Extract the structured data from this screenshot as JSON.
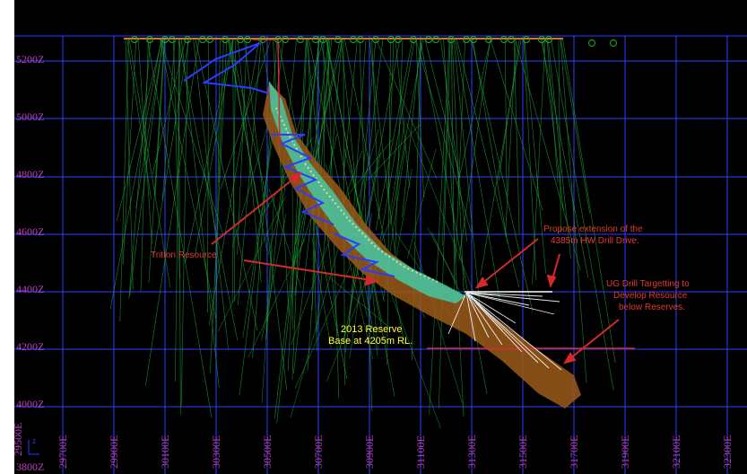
{
  "section": {
    "y_levels": [
      "5200Z",
      "5000Z",
      "4800Z",
      "4600Z",
      "4400Z",
      "4200Z",
      "4000Z",
      "3800Z"
    ],
    "y_partial_label": "3800Z",
    "x_eastings": [
      "29700E",
      "29900E",
      "30100E",
      "30300E",
      "30500E",
      "30700E",
      "30900E",
      "31100E",
      "31300E",
      "31500E",
      "31700E",
      "31900E",
      "32100E",
      "32300E"
    ],
    "x_partial_label": "29500E",
    "axis_marker": "z"
  },
  "annotations": {
    "tritton": "Tritton Resource",
    "proposed_line1": "Propose extension of the",
    "proposed_line2": "4385m HW Drill Drive.",
    "ug_line1": "UG Drill Targetting to",
    "ug_line2": "Develop Resource",
    "ug_line3": "below Reserves.",
    "reserve_line1": "2013 Reserve",
    "reserve_line2": "Base at 4205m RL."
  },
  "colors": {
    "background": "#000000",
    "grid": "#2d3fff",
    "axis_label": "#c040c0",
    "drill_trace": "#1fa83a",
    "orebody_core": "#40e0c0",
    "orebody_halo": "#c87a2a",
    "annotation": "#e23a2a",
    "reserve_text": "#ffff33",
    "development": "#2a3cff"
  }
}
